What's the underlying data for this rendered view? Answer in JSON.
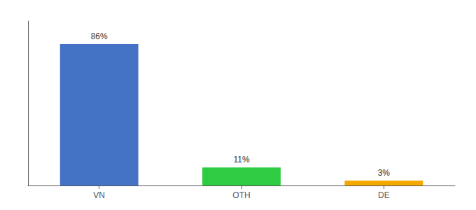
{
  "chart_data": {
    "type": "bar",
    "categories": [
      "VN",
      "OTH",
      "DE"
    ],
    "values": [
      86,
      11,
      3
    ],
    "colors": [
      "#4472c4",
      "#2ecc40",
      "#f4a800"
    ],
    "value_labels": [
      "86%",
      "11%",
      "3%"
    ],
    "data_labels": true,
    "ylim": [
      0,
      100
    ],
    "tick_labels": "x",
    "grid": false
  }
}
